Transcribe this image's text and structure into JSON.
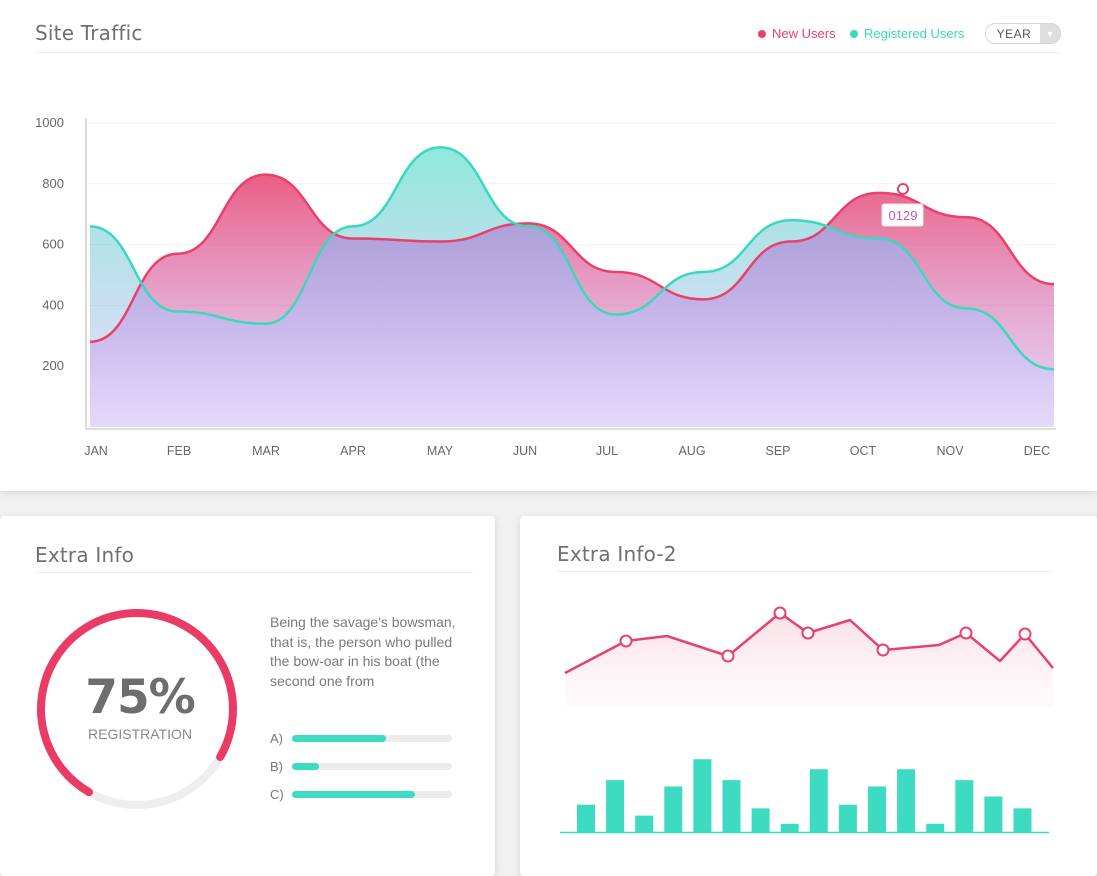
{
  "traffic": {
    "title": "Site Traffic",
    "legend": [
      {
        "name": "New Users",
        "color": "#e8416e"
      },
      {
        "name": "Registered Users",
        "color": "#3ad9bf"
      }
    ],
    "period_select": {
      "value": "YEAR"
    },
    "tooltip_value": "0129"
  },
  "extra1": {
    "title": "Extra Info",
    "gauge_value": "75%",
    "gauge_fraction": 0.75,
    "gauge_label": "REGISTRATION",
    "description": "Being the savage's bowsman, that is, the person who pulled the bow-oar in his boat (the second one from",
    "bars": [
      {
        "label": "A)",
        "fraction": 0.59
      },
      {
        "label": "B)",
        "fraction": 0.17
      },
      {
        "label": "C)",
        "fraction": 0.77
      }
    ]
  },
  "extra2": {
    "title": "Extra Info-2"
  },
  "chart_data": [
    {
      "type": "area",
      "categories": [
        "JAN",
        "FEB",
        "MAR",
        "APR",
        "MAY",
        "JUN",
        "JUL",
        "AUG",
        "SEP",
        "OCT",
        "NOV",
        "DEC"
      ],
      "yticks": [
        200,
        400,
        600,
        800,
        1000
      ],
      "ylim": [
        0,
        1000
      ],
      "series": [
        {
          "name": "New Users",
          "color": "#e8416e",
          "values": [
            280,
            570,
            830,
            620,
            610,
            670,
            510,
            420,
            610,
            770,
            690,
            470
          ]
        },
        {
          "name": "Registered Users",
          "color": "#3ad9bf",
          "values": [
            660,
            380,
            340,
            660,
            920,
            660,
            370,
            510,
            680,
            620,
            390,
            190
          ]
        }
      ],
      "grid": true
    },
    {
      "type": "line",
      "values": [
        33,
        65,
        70,
        50,
        93,
        73,
        86,
        56,
        61,
        73,
        45,
        72,
        38
      ],
      "markers": [
        false,
        true,
        false,
        true,
        true,
        true,
        false,
        true,
        false,
        true,
        false,
        true,
        false
      ],
      "color": "#e8416e"
    },
    {
      "type": "bar",
      "values": [
        30,
        57,
        18,
        50,
        80,
        57,
        26,
        9,
        69,
        30,
        50,
        69,
        9,
        57,
        39,
        26
      ],
      "color": "#3ddbc1"
    }
  ]
}
